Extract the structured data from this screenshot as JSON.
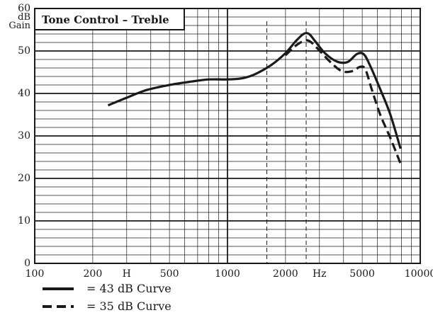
{
  "chart_data": {
    "type": "line",
    "title": "Tone Control – Treble",
    "x_scale": "log",
    "xlim": [
      100,
      10000
    ],
    "ylim": [
      0,
      60
    ],
    "y_ticks": [
      0,
      10,
      20,
      30,
      40,
      50,
      60
    ],
    "y_unit_labels": [
      "dB",
      "Gain"
    ],
    "x_ticks": [
      {
        "value": 100,
        "label": "100"
      },
      {
        "value": 200,
        "label": "200"
      },
      {
        "value": 300,
        "label": "H"
      },
      {
        "value": 500,
        "label": "500"
      },
      {
        "value": 1000,
        "label": "1000"
      },
      {
        "value": 2000,
        "label": "2000"
      },
      {
        "value": 3000,
        "label": "Hz"
      },
      {
        "value": 5000,
        "label": "5000"
      },
      {
        "value": 10000,
        "label": "10000"
      }
    ],
    "reference_lines_x": [
      1600,
      2560
    ],
    "grid": true,
    "legend": [
      {
        "label": "= 43 dB Curve",
        "style": "solid"
      },
      {
        "label": "= 35 dB Curve",
        "style": "dashed"
      }
    ],
    "series": [
      {
        "name": "43 dB Curve",
        "style": "solid",
        "points": [
          [
            240,
            37.2
          ],
          [
            300,
            39.0
          ],
          [
            380,
            40.8
          ],
          [
            500,
            42.0
          ],
          [
            650,
            42.8
          ],
          [
            800,
            43.3
          ],
          [
            1000,
            43.3
          ],
          [
            1200,
            43.6
          ],
          [
            1400,
            44.6
          ],
          [
            1700,
            46.8
          ],
          [
            2000,
            49.5
          ],
          [
            2250,
            52.2
          ],
          [
            2480,
            54.0
          ],
          [
            2650,
            54.0
          ],
          [
            2850,
            52.3
          ],
          [
            3200,
            49.5
          ],
          [
            3700,
            47.5
          ],
          [
            4200,
            47.4
          ],
          [
            4700,
            49.3
          ],
          [
            5100,
            49.2
          ],
          [
            5500,
            46.5
          ],
          [
            6200,
            41.0
          ],
          [
            7000,
            35.0
          ],
          [
            7900,
            27.0
          ]
        ]
      },
      {
        "name": "35 dB Curve",
        "style": "dashed",
        "points": [
          [
            2000,
            49.0
          ],
          [
            2300,
            51.5
          ],
          [
            2600,
            52.5
          ],
          [
            2900,
            50.8
          ],
          [
            3400,
            47.5
          ],
          [
            3900,
            45.3
          ],
          [
            4400,
            45.2
          ],
          [
            4900,
            46.3
          ],
          [
            5200,
            45.6
          ],
          [
            5600,
            41.0
          ],
          [
            6200,
            35.0
          ],
          [
            7000,
            29.5
          ],
          [
            7900,
            23.5
          ]
        ]
      }
    ]
  },
  "colors": {
    "ink": "#1a1a1a",
    "background": "#ffffff"
  }
}
